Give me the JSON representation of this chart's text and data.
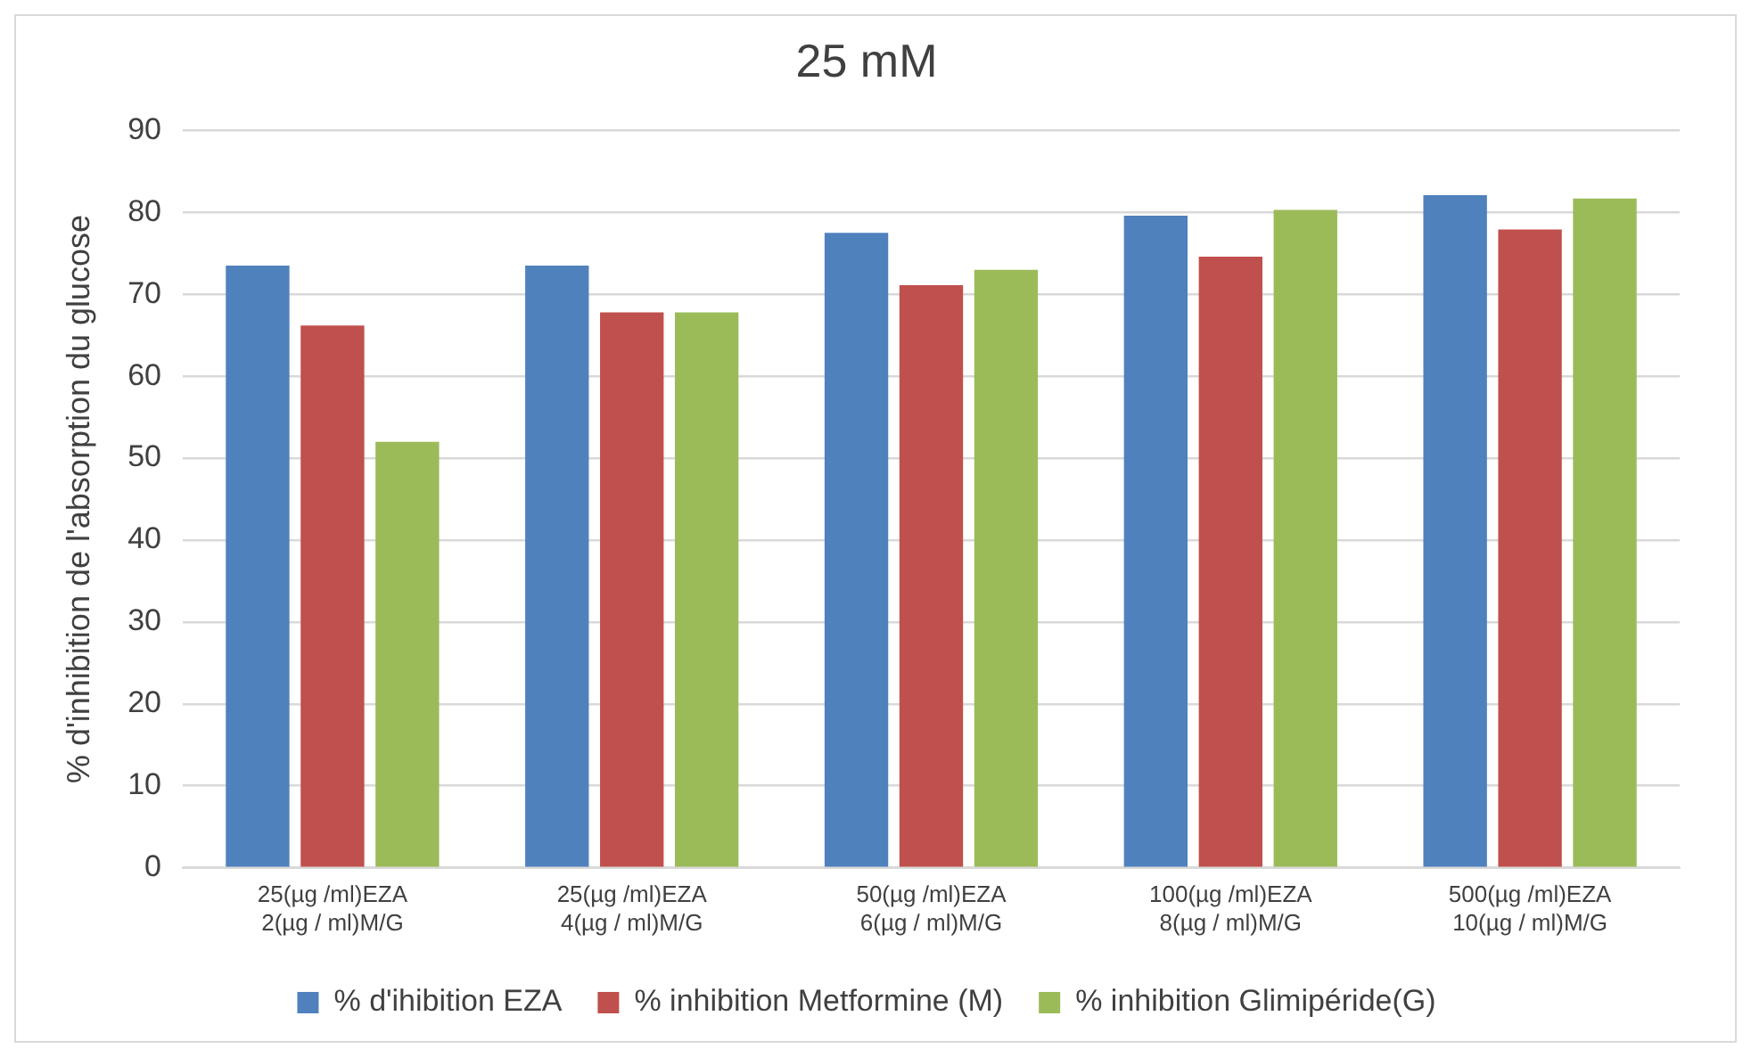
{
  "chart_data": {
    "type": "bar",
    "title": "25 mM",
    "ylabel": "% d'inhibition de l'absorption du glucose",
    "categories": [
      "25(µg /ml)EZA\n2(µg / ml)M/G",
      "25(µg /ml)EZA\n4(µg / ml)M/G",
      "50(µg /ml)EZA\n6(µg / ml)M/G",
      "100(µg /ml)EZA\n8(µg / ml)M/G",
      "500(µg /ml)EZA\n10(µg / ml)M/G"
    ],
    "series": [
      {
        "name": "% d'ihibition EZA",
        "color": "#4f81bd",
        "values": [
          73.5,
          73.5,
          77.5,
          79.6,
          82.1
        ]
      },
      {
        "name": "% inhibition Metformine (M)",
        "color": "#c0504d",
        "values": [
          66.2,
          67.8,
          71.1,
          74.6,
          77.9
        ]
      },
      {
        "name": "% inhibition Glimipéride(G)",
        "color": "#9bbb59",
        "values": [
          52.0,
          67.8,
          73.0,
          80.3,
          81.7
        ]
      }
    ],
    "ylim": [
      0,
      90
    ],
    "yticks": [
      0,
      10,
      20,
      30,
      40,
      50,
      60,
      70,
      80,
      90
    ],
    "grid": "y",
    "legend": "bottom"
  }
}
